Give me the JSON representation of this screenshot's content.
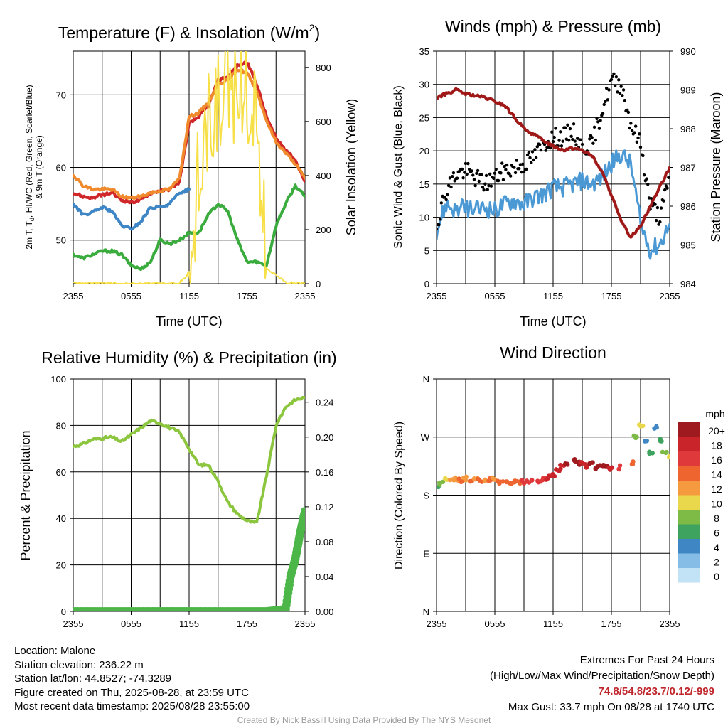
{
  "charts": {
    "temp": {
      "title_main": "Temperature (F) & Insolation (W/m",
      "title_sup": "2",
      "title_end": ")",
      "ylabel_left_1": "2m T, T",
      "ylabel_left_sub": "d",
      "ylabel_left_2": ", HI/WC (Red, Green, Scarlet/Blue)",
      "ylabel_left_3": "& 9m T (Orange)",
      "ylabel_right": "Solar Insolation (Yellow)",
      "xlabel": "Time (UTC)"
    },
    "wind": {
      "title": "Winds (mph) & Pressure (mb)",
      "ylabel_left": "Sonic Wind & Gust (Blue, Black)",
      "ylabel_right": "Station Pressure (Maroon)",
      "xlabel": "Time (UTC)"
    },
    "rh": {
      "title": "Relative Humidity (%) & Precipitation (in)",
      "ylabel_left": "Percent & Precipitation"
    },
    "dir": {
      "title": "Wind Direction",
      "ylabel_left": "Direction (Colored By Speed)",
      "legend_title": "mph"
    }
  },
  "chart_data": [
    {
      "type": "line",
      "id": "temp",
      "x_ticks": [
        "2355",
        "0555",
        "1155",
        "1755",
        "2355"
      ],
      "y_ticks_left": [
        "50",
        "60",
        "70"
      ],
      "y_ticks_right": [
        "0",
        "200",
        "400",
        "600",
        "800"
      ],
      "ylim_left": [
        44,
        76
      ],
      "ylim_right": [
        0,
        860
      ],
      "grid": true,
      "series": [
        {
          "name": "2m T (Red)",
          "axis": "left",
          "color": "#d0272a",
          "x": [
            0,
            1,
            2,
            3,
            4,
            5,
            6,
            7,
            8,
            9,
            10,
            11,
            12,
            13,
            14,
            15,
            16,
            17,
            18,
            19,
            20,
            21,
            22,
            23,
            24
          ],
          "y": [
            56.5,
            56,
            55.8,
            56.2,
            56.5,
            55.5,
            55.2,
            55.5,
            56.5,
            56.8,
            57,
            58,
            66,
            67,
            68.5,
            72,
            72.5,
            74,
            74.5,
            71.5,
            67,
            64,
            62.5,
            61,
            58
          ]
        },
        {
          "name": "9m T (Orange)",
          "axis": "left",
          "color": "#f08a2c",
          "x": [
            0,
            1,
            2,
            3,
            4,
            5,
            6,
            7,
            8,
            9,
            10,
            11,
            12,
            13,
            14,
            15,
            16,
            17,
            18,
            19,
            20,
            21,
            22,
            23,
            24
          ],
          "y": [
            59,
            57.5,
            57,
            57,
            57,
            56,
            55.8,
            56,
            56.5,
            56.8,
            57,
            58.5,
            67,
            67.5,
            69,
            71.5,
            72,
            73.5,
            73,
            70.5,
            66.5,
            63.5,
            62,
            60.5,
            58.5
          ]
        },
        {
          "name": "HI/WC (Blue)",
          "axis": "left",
          "color": "#3e86c6",
          "x": [
            0,
            1,
            2,
            3,
            4,
            5,
            6,
            7,
            8,
            9,
            10,
            11,
            12
          ],
          "y": [
            55,
            53.5,
            53.8,
            54.5,
            54,
            52,
            51.5,
            52.5,
            54.5,
            54.5,
            55,
            56.5,
            57
          ]
        },
        {
          "name": "Td (Green)",
          "axis": "left",
          "color": "#3aac3e",
          "x": [
            0,
            1,
            2,
            3,
            4,
            5,
            6,
            7,
            8,
            9,
            10,
            11,
            12,
            13,
            14,
            15,
            16,
            17,
            18,
            19,
            20,
            21,
            22,
            23,
            24
          ],
          "y": [
            48,
            47.5,
            48,
            48.5,
            48.5,
            48,
            46.5,
            46,
            47,
            50,
            49.5,
            50,
            51,
            51,
            53.5,
            55,
            54,
            50,
            47,
            47,
            46.5,
            52,
            55,
            57.5,
            56
          ]
        },
        {
          "name": "Solar Insolation (Yellow)",
          "axis": "right",
          "color": "#f7df47",
          "x": [
            0,
            1,
            2,
            3,
            4,
            5,
            6,
            7,
            8,
            9,
            10,
            11,
            12,
            13,
            14,
            15,
            16,
            17,
            18,
            19,
            20,
            21,
            22,
            23,
            24
          ],
          "y": [
            0,
            0,
            0,
            0,
            0,
            0,
            0,
            0,
            0,
            0,
            0,
            5,
            40,
            420,
            580,
            650,
            690,
            760,
            720,
            640,
            60,
            30,
            5,
            0,
            0
          ]
        }
      ]
    },
    {
      "type": "line",
      "id": "wind",
      "x_ticks": [
        "2355",
        "0555",
        "1155",
        "1755",
        "2355"
      ],
      "y_ticks_left": [
        "0",
        "5",
        "10",
        "15",
        "20",
        "25",
        "30",
        "35"
      ],
      "y_ticks_right": [
        "984",
        "985",
        "986",
        "987",
        "988",
        "989",
        "990"
      ],
      "ylim_left": [
        0,
        35
      ],
      "ylim_right": [
        984,
        990
      ],
      "grid": true,
      "series": [
        {
          "name": "Sonic Wind (Blue)",
          "axis": "left",
          "color": "#4a98d4",
          "x": [
            0,
            1,
            2,
            3,
            4,
            5,
            6,
            7,
            8,
            9,
            10,
            11,
            12,
            13,
            14,
            15,
            16,
            17,
            18,
            19,
            20,
            21,
            22,
            23,
            24
          ],
          "y": [
            8,
            12,
            11,
            11.5,
            11,
            11.5,
            11,
            12,
            12.5,
            12,
            13,
            13.5,
            14.5,
            14.5,
            15,
            15.5,
            15,
            16,
            18,
            19.5,
            18,
            9,
            5,
            6,
            9
          ]
        },
        {
          "name": "Gust (Black)",
          "axis": "left",
          "color": "#000000",
          "x": [
            0,
            1,
            2,
            3,
            4,
            5,
            6,
            7,
            8,
            9,
            10,
            11,
            12,
            13,
            14,
            15,
            16,
            17,
            18,
            19,
            20,
            21,
            22,
            23,
            24
          ],
          "y": [
            9,
            14,
            16.5,
            17,
            16,
            15,
            16,
            17,
            17.5,
            18,
            19,
            21,
            22,
            22,
            23,
            20.5,
            21,
            26,
            30.5,
            30,
            24,
            21,
            12,
            10,
            16
          ]
        },
        {
          "name": "Station Pressure (Maroon)",
          "axis": "right",
          "color": "#a01919",
          "x": [
            0,
            1,
            2,
            3,
            4,
            5,
            6,
            7,
            8,
            9,
            10,
            11,
            12,
            13,
            14,
            15,
            16,
            17,
            18,
            19,
            20,
            21,
            22,
            23,
            24
          ],
          "y": [
            988.8,
            988.9,
            989.0,
            988.9,
            988.85,
            988.8,
            988.7,
            988.6,
            988.3,
            988.0,
            987.85,
            987.7,
            987.55,
            987.45,
            987.5,
            987.45,
            987.3,
            986.9,
            986.3,
            985.6,
            985.2,
            985.5,
            986.0,
            986.5,
            987.0
          ]
        }
      ]
    },
    {
      "type": "line",
      "id": "rh",
      "x_ticks": [
        "2355",
        "0555",
        "1155",
        "1755",
        "2355"
      ],
      "y_ticks_left": [
        "0",
        "20",
        "40",
        "60",
        "80",
        "100"
      ],
      "y_ticks_right": [
        "0.00",
        "0.04",
        "0.08",
        "0.12",
        "0.16",
        "0.20",
        "0.24"
      ],
      "ylim_left": [
        0,
        100
      ],
      "ylim_right": [
        0,
        0.2667
      ],
      "grid": true,
      "series": [
        {
          "name": "Relative Humidity",
          "axis": "left",
          "color": "#8cc63f",
          "x": [
            0,
            1,
            2,
            3,
            4,
            5,
            6,
            7,
            8,
            9,
            10,
            11,
            12,
            13,
            14,
            15,
            16,
            17,
            18,
            19,
            20,
            21,
            22,
            23,
            24
          ],
          "y": [
            71,
            72,
            74,
            74.5,
            75,
            73,
            76,
            79,
            82,
            81,
            79,
            77,
            70,
            63,
            63,
            56,
            47,
            42,
            39,
            38,
            58,
            80,
            88,
            91,
            92
          ]
        },
        {
          "name": "Precipitation",
          "axis": "right",
          "color": "#4cb648",
          "x": [
            0,
            2,
            4,
            6,
            8,
            10,
            12,
            14,
            16,
            18,
            20,
            22,
            22.5,
            23,
            23.5,
            24
          ],
          "y": [
            0,
            0,
            0,
            0,
            0,
            0,
            0,
            0,
            0,
            0,
            0,
            0.0025,
            0.04,
            0.06,
            0.09,
            0.115
          ]
        }
      ]
    },
    {
      "type": "scatter",
      "id": "dir",
      "x_ticks": [
        "2355",
        "0555",
        "1155",
        "1755",
        "2355"
      ],
      "y_ticks_left": [
        "N",
        "E",
        "S",
        "W",
        "N"
      ],
      "ylim_left": [
        0,
        360
      ],
      "grid": true,
      "legend": {
        "title": "mph",
        "labels": [
          "20+",
          "18",
          "16",
          "14",
          "12",
          "10",
          "8",
          "6",
          "4",
          "2",
          "0"
        ],
        "colors": [
          "#9e1a1f",
          "#c8242a",
          "#e0393b",
          "#ee6530",
          "#f59a3f",
          "#e9d84b",
          "#7dbb46",
          "#3da35e",
          "#3f86c4",
          "#86bde6",
          "#c2e2f6"
        ]
      },
      "series": [
        {
          "name": "Wind direction colored by speed",
          "x": [
            0,
            0.5,
            1,
            1.5,
            2,
            2.5,
            3,
            3.5,
            4,
            4.5,
            5,
            5.5,
            6,
            6.5,
            7,
            7.5,
            8,
            8.5,
            9,
            9.5,
            10,
            10.5,
            11,
            11.5,
            12,
            12.5,
            13,
            13.5,
            14,
            14.5,
            15,
            15.5,
            16,
            16.5,
            17,
            17.5,
            18,
            19,
            20,
            20.5,
            21,
            21.5,
            22,
            22.5,
            23,
            23.5,
            24
          ],
          "y": [
            193,
            198,
            204,
            206,
            205,
            203,
            206,
            202,
            204,
            203,
            202,
            205,
            204,
            200,
            201,
            199,
            200,
            200,
            201,
            200,
            201,
            203,
            205,
            207,
            211,
            217,
            224,
            230,
            234,
            229,
            232,
            225,
            229,
            222,
            226,
            225,
            222,
            223,
            230,
            270,
            288,
            262,
            245,
            285,
            265,
            248,
            238
          ],
          "speeds": [
            6,
            8,
            10,
            11,
            12,
            13,
            12,
            13,
            12,
            13,
            12,
            14,
            12,
            13,
            13,
            14,
            13,
            14,
            15,
            15,
            16,
            16,
            16,
            17,
            17,
            18,
            18,
            19,
            19,
            20,
            18,
            18,
            20,
            19,
            20,
            20,
            18,
            16,
            14,
            8,
            10,
            4,
            6,
            3,
            6,
            8,
            10
          ]
        }
      ]
    }
  ],
  "footer": {
    "location": "Location: Malone",
    "elevation": "Station elevation: 236.22 m",
    "latlon": "Station lat/lon: 44.8527; -74.3289",
    "created": "Figure created on Thu, 2025-08-28, at 23:59 UTC",
    "recent": "Most recent data timestamp: 2025/08/28 23:55:00",
    "extremes_title": "Extremes For Past 24 Hours",
    "extremes_sub": "(High/Low/Max Wind/Precipitation/Snow Depth)",
    "extremes_values": "74.8/54.8/23.7/0.12/-999",
    "max_gust": "Max Gust: 33.7 mph On 08/28 at 1740 UTC",
    "credit": "Created By Nick Bassill Using Data Provided By The NYS Mesonet"
  }
}
